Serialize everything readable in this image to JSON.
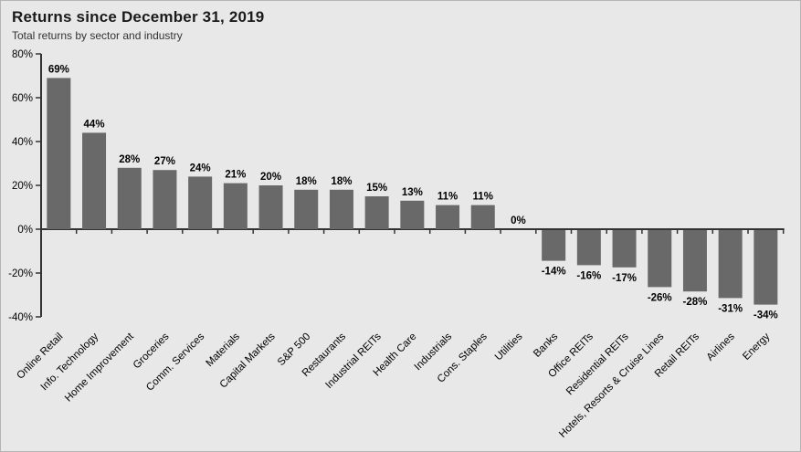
{
  "header": {
    "title": "Returns since December 31, 2019",
    "subtitle": "Total returns by sector and industry"
  },
  "chart_data": {
    "type": "bar",
    "title": "Returns since December 31, 2019",
    "subtitle": "Total returns by sector and industry",
    "categories": [
      "Online Retail",
      "Info. Technology",
      "Home Improvement",
      "Groceries",
      "Comm. Services",
      "Materials",
      "Capital Markets",
      "S&P 500",
      "Restaurants",
      "Industrial REITs",
      "Health Care",
      "Industrials",
      "Cons. Staples",
      "Utilities",
      "Banks",
      "Office REITs",
      "Residential REITs",
      "Hotels, Resorts & Cruise Lines",
      "Retail REITs",
      "Airlines",
      "Energy"
    ],
    "values": [
      69,
      44,
      28,
      27,
      24,
      21,
      20,
      18,
      18,
      15,
      13,
      11,
      11,
      0,
      -14,
      -16,
      -17,
      -26,
      -28,
      -31,
      -34
    ],
    "value_labels": [
      "69%",
      "44%",
      "28%",
      "27%",
      "24%",
      "21%",
      "20%",
      "18%",
      "18%",
      "15%",
      "13%",
      "11%",
      "11%",
      "0%",
      "-14%",
      "-16%",
      "-17%",
      "-26%",
      "-28%",
      "-31%",
      "-34%"
    ],
    "xlabel": "",
    "ylabel": "",
    "ylim": [
      -40,
      80
    ],
    "ytick_step": 20,
    "ytick_labels": [
      "80%",
      "60%",
      "40%",
      "20%",
      "0%",
      "-20%",
      "-40%"
    ],
    "ytick_values": [
      80,
      60,
      40,
      20,
      0,
      -20,
      -40
    ],
    "grid": false,
    "legend": "none",
    "bar_color": "#696969",
    "background_color": "#e8e8e8",
    "axis_color": "#333333",
    "label_color": "#000000"
  }
}
